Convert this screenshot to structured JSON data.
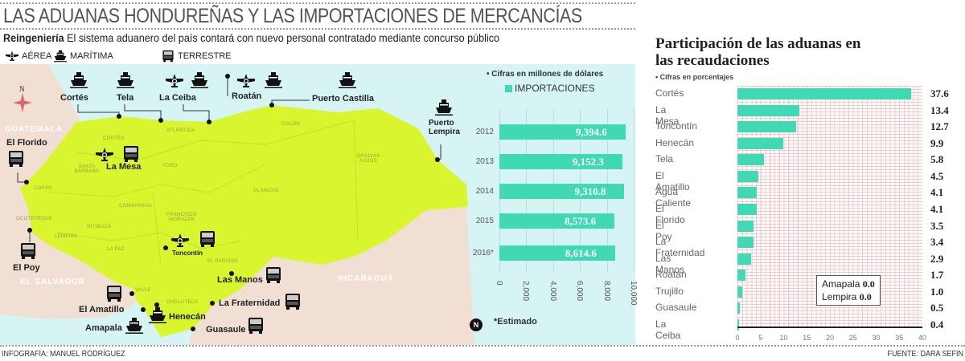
{
  "header": {
    "title": "LAS ADUANAS HONDUREÑAS Y LAS IMPORTACIONES DE MERCANCÍAS",
    "kicker": "Reingeniería",
    "subtitle": "El sistema aduanero del país contará con nuevo personal contratado mediante concurso público",
    "legend": [
      {
        "icon": "plane-icon",
        "label": "AÉREA"
      },
      {
        "icon": "ship-icon",
        "label": "MARÍTIMA"
      },
      {
        "icon": "truck-icon",
        "label": "TERRESTRE"
      }
    ]
  },
  "map": {
    "compass_label": "N",
    "countries": [
      "GUATEMALA",
      "EL SALVADOR",
      "NICARAGUA"
    ],
    "departments": [
      "CORTÉS",
      "ATLÁNTIDA",
      "YORO",
      "SANTA BÁRBARA",
      "COPÁN",
      "OCOTEPEQUE",
      "LEMPIRA",
      "INTIBUCÁ",
      "COMAYAGUA",
      "FRANCISCO MORAZÁN",
      "LA PAZ",
      "EL PARAÍSO",
      "VALLE",
      "CHOLUTECA",
      "COLÓN",
      "OLANCHO",
      "GRACIAS A DIOS"
    ],
    "stations": [
      "Cortés",
      "Tela",
      "La Ceiba",
      "Roatán",
      "Puerto Castilla",
      "Puerto Lempira",
      "El Florido",
      "La Mesa",
      "Toncontín",
      "El Poy",
      "Las Manos",
      "El Amatillo",
      "Henecán",
      "La Fraternidad",
      "Amapala",
      "Guasaule"
    ],
    "colors": {
      "land": "#d9f52e",
      "sea": "#d6f4f4",
      "neighbors": "#f1dfd4"
    }
  },
  "chart_data": [
    {
      "type": "bar",
      "orientation": "horizontal",
      "title": "IMPORTACIONES",
      "note": "• Cifras en millones de dólares",
      "categories": [
        "2012",
        "2013",
        "2014",
        "2015",
        "2016*"
      ],
      "values": [
        9394.6,
        9152.3,
        9310.8,
        8573.6,
        8614.6
      ],
      "value_labels": [
        "9,394.6",
        "9,152.3",
        "9,310.8",
        "8,573.6",
        "8,614.6"
      ],
      "xlim": [
        0,
        10000
      ],
      "ticks": [
        "0",
        "2,000",
        "4,000",
        "6,000",
        "8,000",
        "10,000"
      ],
      "footnote": "*Estimado",
      "color": "#3fd9b4"
    },
    {
      "type": "bar",
      "orientation": "horizontal",
      "title": "Participación de las aduanas en las recaudaciones",
      "note": "• Cifras en porcentajes",
      "categories": [
        "Cortés",
        "La Mesa",
        "Toncontín",
        "Henecán",
        "Tela",
        "El Amatillo",
        "Agua Caliente",
        "El Florido",
        "El Poy",
        "La Fraternidad",
        "Las Manos",
        "Roatán",
        "Trujillo",
        "Guasaule",
        "La Ceiba"
      ],
      "values": [
        37.6,
        13.4,
        12.7,
        9.9,
        5.8,
        4.5,
        4.1,
        4.1,
        3.5,
        3.4,
        2.9,
        1.7,
        1.0,
        0.5,
        0.4
      ],
      "value_labels": [
        "37.6",
        "13.4",
        "12.7",
        "9.9",
        "5.8",
        "4.5",
        "4.1",
        "4.1",
        "3.5",
        "3.4",
        "2.9",
        "1.7",
        "1.0",
        "0.5",
        "0.4"
      ],
      "xlim": [
        0,
        40
      ],
      "ticks": [
        "0",
        "5",
        "10",
        "15",
        "20",
        "25",
        "30",
        "35",
        "40"
      ],
      "annotation": [
        {
          "label": "Amapala",
          "value": "0.0"
        },
        {
          "label": "Lempira",
          "value": "0.0"
        }
      ],
      "color": "#3fd9b4"
    }
  ],
  "footer": {
    "credit": "INFOGRAFÍA: MANUEL RODRÍGUEZ",
    "source": "FUENTE: DARA SEFIN"
  }
}
